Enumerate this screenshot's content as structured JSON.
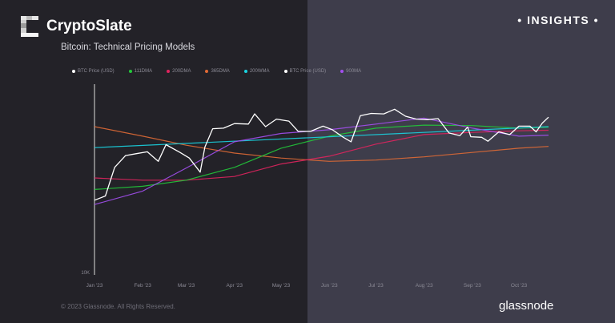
{
  "header": {
    "brand": "CryptoSlate",
    "subtitle": "Bitcoin: Technical Pricing Models",
    "badge": "• INSIGHTS •"
  },
  "footer": {
    "copyright": "© 2023 Glassnode. All Rights Reserved.",
    "provider": "glassnode"
  },
  "chart_data": {
    "type": "line",
    "title": "",
    "yscale": "log",
    "y_tick_labels": [
      "10K"
    ],
    "x_tick_labels": [
      "Jan '23",
      "Feb '23",
      "Mar '23",
      "Apr '23",
      "May '23",
      "Jun '23",
      "Jul '23",
      "Aug '23",
      "Sep '23",
      "Oct '23"
    ],
    "x_ticks": [
      "2023-01-01",
      "2023-02-01",
      "2023-03-01",
      "2023-04-01",
      "2023-05-01",
      "2023-06-01",
      "2023-07-01",
      "2023-08-01",
      "2023-09-01",
      "2023-10-01"
    ],
    "xlim": [
      "2023-01-01",
      "2023-10-20"
    ],
    "ylim": [
      10000,
      38000
    ],
    "legend": [
      {
        "name": "BTC Price (USD)",
        "color": "#ffffff"
      },
      {
        "name": "111DMA",
        "color": "#22c83a"
      },
      {
        "name": "200DMA",
        "color": "#e0245e"
      },
      {
        "name": "365DMA",
        "color": "#e06a35"
      },
      {
        "name": "200WMA",
        "color": "#1ad3e0"
      },
      {
        "name": "BTC Price (USD)",
        "color": "#ffffff"
      },
      {
        "name": "900MA",
        "color": "#a34ff0"
      }
    ],
    "legend_position": "top-left",
    "series": [
      {
        "name": "365DMA",
        "color": "#e06a35",
        "x": [
          "2023-01-01",
          "2023-02-01",
          "2023-03-01",
          "2023-04-01",
          "2023-05-01",
          "2023-06-01",
          "2023-07-01",
          "2023-08-01",
          "2023-09-01",
          "2023-10-01",
          "2023-10-20"
        ],
        "y": [
          27800,
          26000,
          24400,
          23100,
          22300,
          21800,
          22000,
          22500,
          23200,
          23900,
          24200
        ]
      },
      {
        "name": "200DMA",
        "color": "#e0245e",
        "x": [
          "2023-01-01",
          "2023-02-01",
          "2023-03-01",
          "2023-04-01",
          "2023-05-01",
          "2023-06-01",
          "2023-07-01",
          "2023-08-01",
          "2023-09-01",
          "2023-10-01",
          "2023-10-20"
        ],
        "y": [
          19400,
          19100,
          19100,
          19600,
          21400,
          22600,
          24600,
          26300,
          26700,
          27000,
          27100
        ]
      },
      {
        "name": "111DMA",
        "color": "#22c83a",
        "x": [
          "2023-01-01",
          "2023-02-01",
          "2023-03-01",
          "2023-04-01",
          "2023-05-01",
          "2023-06-01",
          "2023-07-01",
          "2023-08-01",
          "2023-09-01",
          "2023-10-01",
          "2023-10-20"
        ],
        "y": [
          17900,
          18300,
          19100,
          20900,
          23900,
          26000,
          27500,
          28100,
          28000,
          27500,
          27700
        ]
      },
      {
        "name": "200WMA",
        "color": "#1ad3e0",
        "x": [
          "2023-01-01",
          "2023-10-20"
        ],
        "y": [
          24000,
          27800
        ]
      },
      {
        "name": "900MA",
        "color": "#a34ff0",
        "x": [
          "2023-01-01",
          "2023-02-01",
          "2023-03-01",
          "2023-04-01",
          "2023-05-01",
          "2023-06-01",
          "2023-07-01",
          "2023-08-01",
          "2023-09-01",
          "2023-10-01",
          "2023-10-20"
        ],
        "y": [
          16100,
          17700,
          20800,
          25000,
          26500,
          27200,
          28300,
          29500,
          27500,
          26000,
          26200
        ]
      },
      {
        "name": "BTC Price (USD)",
        "color": "#ffffff",
        "x": [
          "2023-01-01",
          "2023-01-08",
          "2023-01-14",
          "2023-01-21",
          "2023-01-28",
          "2023-02-04",
          "2023-02-11",
          "2023-02-16",
          "2023-02-25",
          "2023-03-03",
          "2023-03-10",
          "2023-03-13",
          "2023-03-18",
          "2023-03-25",
          "2023-04-01",
          "2023-04-10",
          "2023-04-14",
          "2023-04-21",
          "2023-04-28",
          "2023-05-06",
          "2023-05-12",
          "2023-05-20",
          "2023-05-28",
          "2023-06-03",
          "2023-06-10",
          "2023-06-15",
          "2023-06-21",
          "2023-06-28",
          "2023-07-06",
          "2023-07-13",
          "2023-07-20",
          "2023-07-27",
          "2023-08-03",
          "2023-08-10",
          "2023-08-17",
          "2023-08-24",
          "2023-08-29",
          "2023-08-31",
          "2023-09-07",
          "2023-09-11",
          "2023-09-18",
          "2023-09-25",
          "2023-10-01",
          "2023-10-08",
          "2023-10-12",
          "2023-10-16",
          "2023-10-20"
        ],
        "y": [
          16600,
          17100,
          20900,
          22700,
          23000,
          23300,
          21800,
          24500,
          23200,
          22300,
          20200,
          24100,
          27400,
          27500,
          28400,
          28300,
          30400,
          27800,
          29300,
          28900,
          26900,
          26900,
          27900,
          27200,
          25800,
          25000,
          30000,
          30500,
          30400,
          31400,
          29900,
          29300,
          29200,
          29400,
          26600,
          26100,
          27700,
          25900,
          25800,
          25100,
          26800,
          26300,
          27900,
          27900,
          26800,
          28500,
          29700
        ]
      }
    ]
  }
}
